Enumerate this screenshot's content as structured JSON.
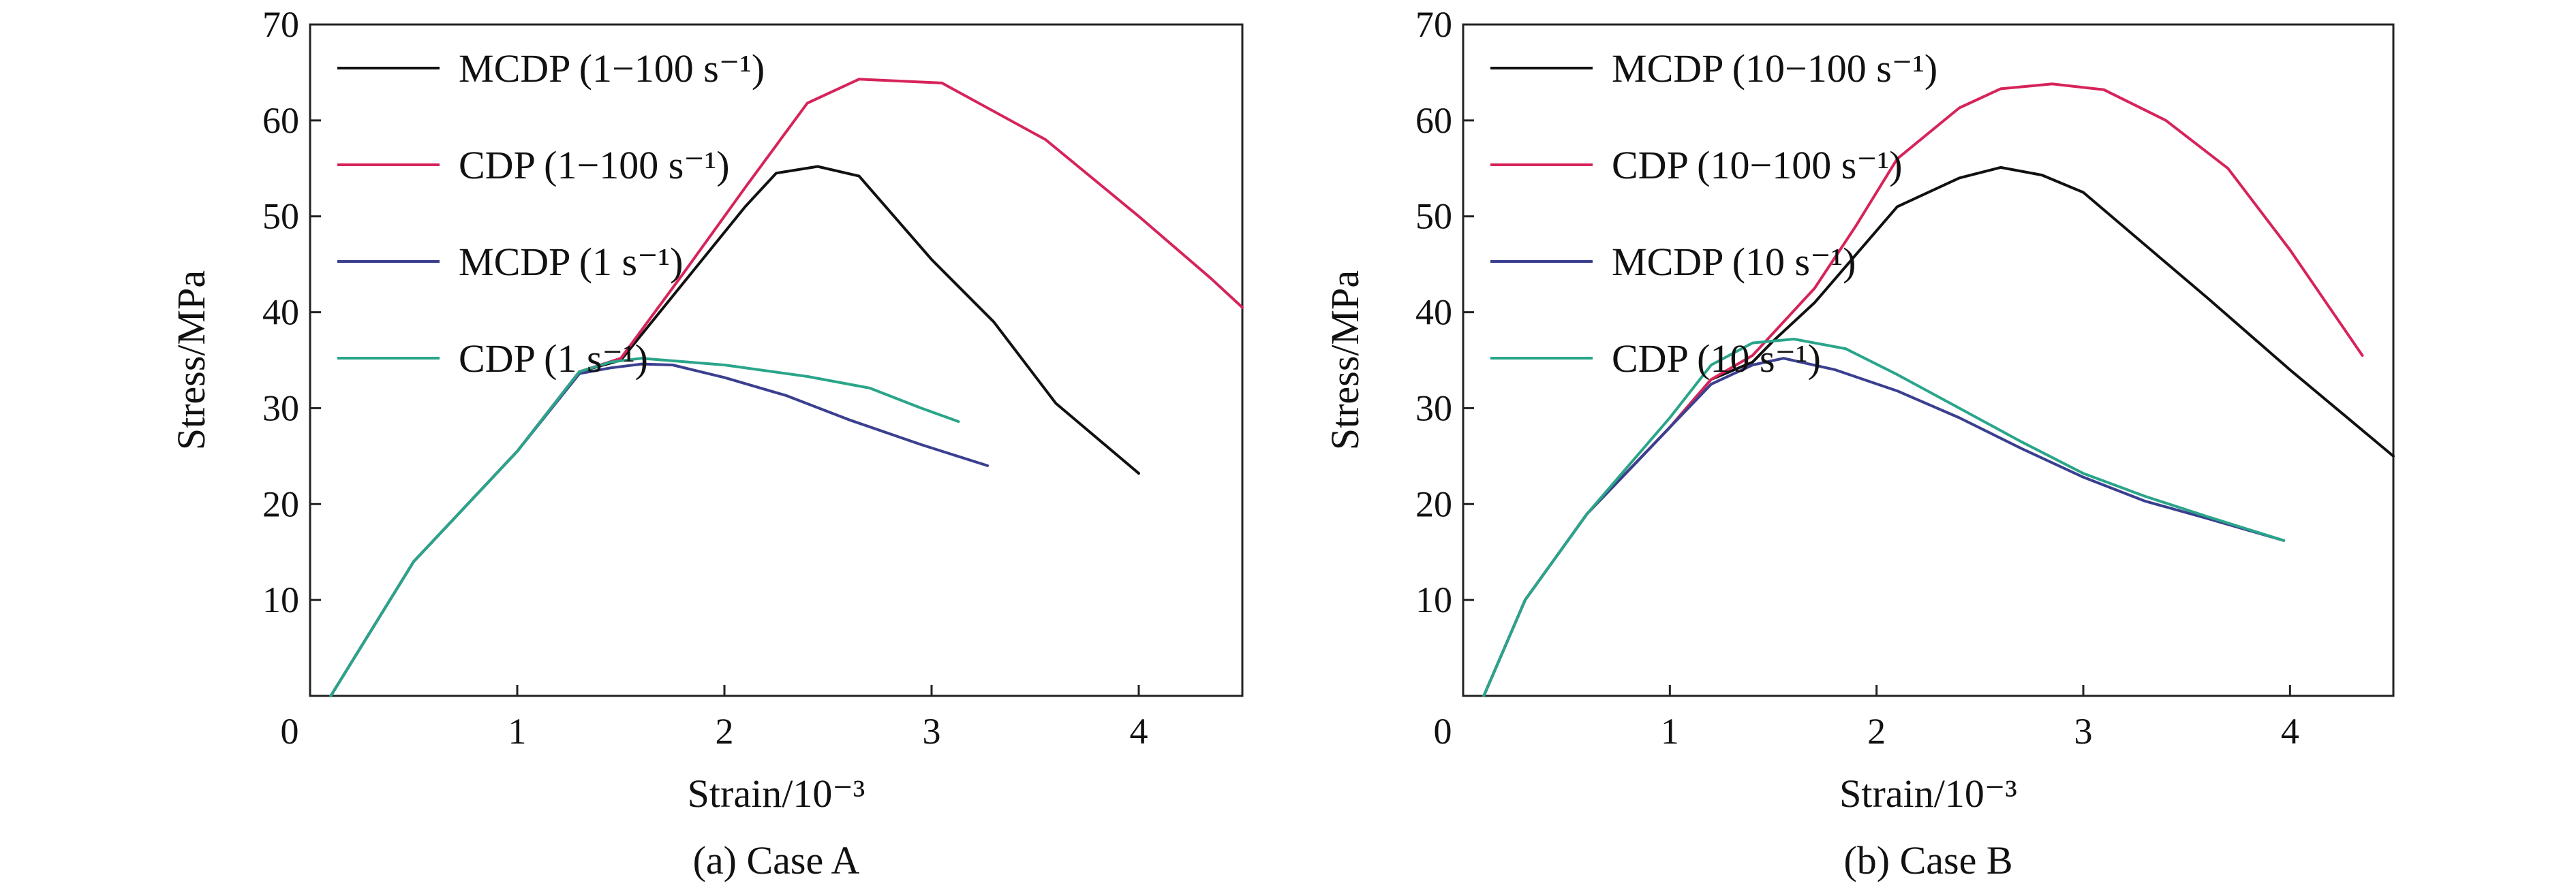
{
  "chart_data": [
    {
      "type": "line",
      "caption": "(a) Case A",
      "xlabel": "Strain/10⁻³",
      "ylabel": "Stress/MPa",
      "xlim": [
        0,
        4.5
      ],
      "ylim": [
        0,
        70
      ],
      "xticks": [
        0,
        1,
        2,
        3,
        4
      ],
      "yticks": [
        10,
        20,
        30,
        40,
        50,
        60,
        70
      ],
      "grid": false,
      "legend_position": "top-left",
      "series": [
        {
          "name": "MCDP (1−100 s⁻¹)",
          "color": "#111111",
          "x": [
            0.1,
            0.5,
            1.0,
            1.3,
            1.5,
            1.8,
            2.1,
            2.25,
            2.45,
            2.65,
            3.0,
            3.3,
            3.6,
            4.0
          ],
          "y": [
            0,
            14,
            25.5,
            33.8,
            35.0,
            43.0,
            51.0,
            54.5,
            55.2,
            54.2,
            45.5,
            39.0,
            30.5,
            23.2
          ]
        },
        {
          "name": "CDP (1−100 s⁻¹)",
          "color": "#d6245a",
          "x": [
            0.1,
            0.5,
            1.0,
            1.3,
            1.5,
            1.8,
            2.1,
            2.4,
            2.65,
            3.05,
            3.55,
            4.0,
            4.35,
            4.5
          ],
          "y": [
            0,
            14,
            25.5,
            33.8,
            35.2,
            44.0,
            53.0,
            61.8,
            64.3,
            63.9,
            58.0,
            50.0,
            43.5,
            40.5
          ]
        },
        {
          "name": "MCDP (1 s⁻¹)",
          "color": "#3a3f8f",
          "x": [
            0.1,
            0.5,
            1.0,
            1.3,
            1.45,
            1.6,
            1.75,
            2.0,
            2.3,
            2.6,
            2.95,
            3.27
          ],
          "y": [
            0,
            14,
            25.5,
            33.6,
            34.2,
            34.6,
            34.5,
            33.2,
            31.3,
            28.8,
            26.2,
            24.0
          ]
        },
        {
          "name": "CDP (1 s⁻¹)",
          "color": "#2aa58a",
          "x": [
            0.1,
            0.5,
            1.0,
            1.3,
            1.45,
            1.6,
            2.0,
            2.4,
            2.7,
            2.95,
            3.13
          ],
          "y": [
            0,
            14,
            25.5,
            33.8,
            34.8,
            35.2,
            34.5,
            33.3,
            32.1,
            30.0,
            28.6
          ]
        }
      ]
    },
    {
      "type": "line",
      "caption": "(b) Case B",
      "xlabel": "Strain/10⁻³",
      "ylabel": "Stress/MPa",
      "xlim": [
        0,
        4.5
      ],
      "ylim": [
        0,
        70
      ],
      "xticks": [
        0,
        1,
        2,
        3,
        4
      ],
      "yticks": [
        10,
        20,
        30,
        40,
        50,
        60,
        70
      ],
      "grid": false,
      "legend_position": "top-left",
      "series": [
        {
          "name": "MCDP (10−100 s⁻¹)",
          "color": "#111111",
          "x": [
            0.1,
            0.3,
            0.6,
            1.0,
            1.2,
            1.4,
            1.5,
            1.7,
            1.9,
            2.1,
            2.4,
            2.6,
            2.8,
            3.0,
            3.3,
            3.6,
            4.0,
            4.5
          ],
          "y": [
            0,
            10,
            19,
            28,
            33,
            34.8,
            37,
            41,
            46,
            51,
            54,
            55.1,
            54.3,
            52.5,
            47,
            41.5,
            34,
            25
          ]
        },
        {
          "name": "CDP (10−100 s⁻¹)",
          "color": "#d6245a",
          "x": [
            0.1,
            0.3,
            0.6,
            1.0,
            1.2,
            1.4,
            1.55,
            1.7,
            1.9,
            2.1,
            2.4,
            2.6,
            2.85,
            3.1,
            3.4,
            3.7,
            4.0,
            4.35
          ],
          "y": [
            0,
            10,
            19,
            28,
            33,
            35.5,
            39,
            42.5,
            49,
            56,
            61.3,
            63.3,
            63.8,
            63.2,
            60,
            55,
            46.5,
            35.5
          ]
        },
        {
          "name": "MCDP (10 s⁻¹)",
          "color": "#3a3f8f",
          "x": [
            0.1,
            0.3,
            0.6,
            1.0,
            1.2,
            1.4,
            1.55,
            1.8,
            2.1,
            2.4,
            2.7,
            3.0,
            3.3,
            3.6,
            3.97
          ],
          "y": [
            0,
            10,
            19,
            28,
            32.5,
            34.5,
            35.2,
            34.0,
            31.8,
            29.0,
            25.8,
            22.8,
            20.3,
            18.5,
            16.2
          ]
        },
        {
          "name": "CDP (10 s⁻¹)",
          "color": "#2aa58a",
          "x": [
            0.1,
            0.3,
            0.6,
            1.0,
            1.2,
            1.4,
            1.6,
            1.85,
            2.1,
            2.4,
            2.7,
            3.0,
            3.3,
            3.6,
            3.97
          ],
          "y": [
            0,
            10,
            19,
            29,
            34.5,
            36.8,
            37.2,
            36.2,
            33.5,
            30.0,
            26.5,
            23.2,
            20.8,
            18.7,
            16.2
          ]
        }
      ]
    }
  ]
}
